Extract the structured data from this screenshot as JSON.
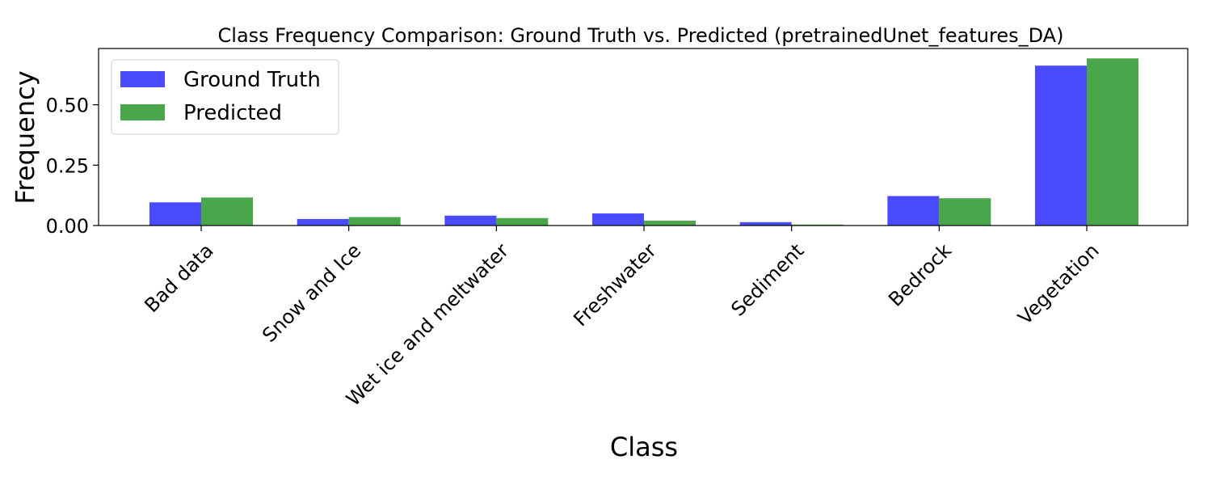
{
  "chart_data": {
    "type": "bar",
    "title": "Class Frequency Comparison: Ground Truth vs. Predicted (pretrainedUnet_features_DA)",
    "xlabel": "Class",
    "ylabel": "Frequency",
    "categories": [
      "Bad data",
      "Snow and Ice",
      "Wet ice and meltwater",
      "Freshwater",
      "Sediment",
      "Bedrock",
      "Vegetation"
    ],
    "series": [
      {
        "name": "Ground Truth",
        "color": "#4a4aff",
        "values": [
          0.096,
          0.027,
          0.041,
          0.05,
          0.014,
          0.122,
          0.662
        ]
      },
      {
        "name": "Predicted",
        "color": "#4aa64a",
        "values": [
          0.116,
          0.035,
          0.031,
          0.02,
          0.004,
          0.113,
          0.692
        ]
      }
    ],
    "ylim": [
      0,
      0.733
    ],
    "yticks": [
      0.0,
      0.25,
      0.5
    ],
    "ytick_labels": [
      "0.00",
      "0.25",
      "0.50"
    ],
    "legend_position": "top-left",
    "grid": false
  }
}
